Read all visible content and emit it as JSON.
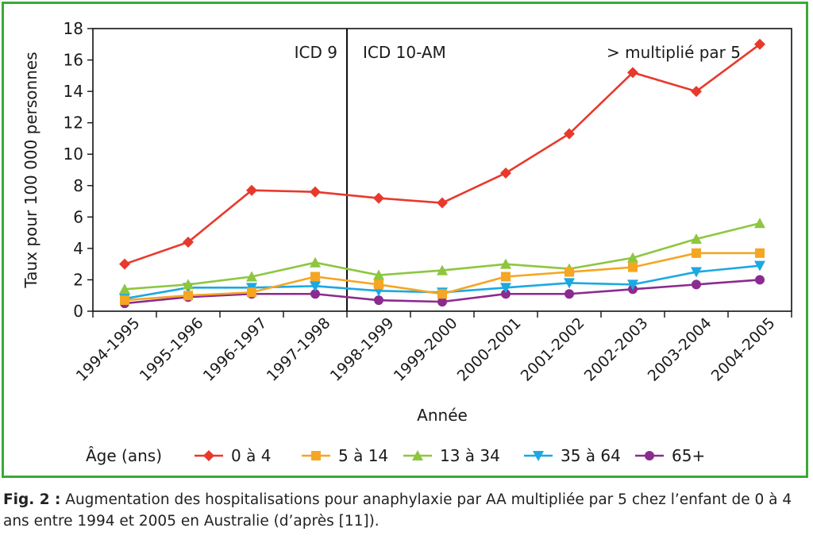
{
  "chart_data": {
    "type": "line",
    "categories": [
      "1994-1995",
      "1995-1996",
      "1996-1997",
      "1997-1998",
      "1998-1999",
      "1999-2000",
      "2000-2001",
      "2001-2002",
      "2002-2003",
      "2003-2004",
      "2004-2005"
    ],
    "xlabel": "Année",
    "ylabel": "Taux pour 100 000 personnes",
    "ylim": [
      0,
      18
    ],
    "yticks": [
      0,
      2,
      4,
      6,
      8,
      10,
      12,
      14,
      16,
      18
    ],
    "grid": false,
    "legend_title": "Âge (ans)",
    "legend_position": "bottom",
    "annotations": {
      "icd9": "ICD 9",
      "icd10": "ICD 10-AM",
      "note": "> multiplié par 5"
    },
    "divider_between": [
      "1997-1998",
      "1998-1999"
    ],
    "series": [
      {
        "name": "0 à 4",
        "color": "#e8392c",
        "marker": "diamond",
        "values": [
          3.0,
          4.4,
          7.7,
          7.6,
          7.2,
          6.9,
          8.8,
          11.3,
          15.2,
          14.0,
          17.0
        ]
      },
      {
        "name": "5 à 14",
        "color": "#f5a623",
        "marker": "square",
        "values": [
          0.7,
          1.0,
          1.2,
          2.2,
          1.7,
          1.1,
          2.2,
          2.5,
          2.8,
          3.7,
          3.7
        ]
      },
      {
        "name": "13 à 34",
        "color": "#8dc63f",
        "marker": "triangle-up",
        "values": [
          1.4,
          1.7,
          2.2,
          3.1,
          2.3,
          2.6,
          3.0,
          2.7,
          3.4,
          4.6,
          5.6
        ]
      },
      {
        "name": "35 à 64",
        "color": "#1ba9e1",
        "marker": "triangle-down",
        "values": [
          0.8,
          1.5,
          1.5,
          1.6,
          1.3,
          1.2,
          1.5,
          1.8,
          1.7,
          2.5,
          2.9
        ]
      },
      {
        "name": "65+",
        "color": "#8b2b8f",
        "marker": "circle",
        "values": [
          0.5,
          0.9,
          1.1,
          1.1,
          0.7,
          0.6,
          1.1,
          1.1,
          1.4,
          1.7,
          2.0
        ]
      }
    ]
  },
  "caption": {
    "label": "Fig. 2 :",
    "text": "Augmentation des hospitalisations pour anaphylaxie par AA multipliée par 5 chez l’enfant de 0 à 4 ans entre 1994 et 2005 en Australie (d’après [11])."
  }
}
